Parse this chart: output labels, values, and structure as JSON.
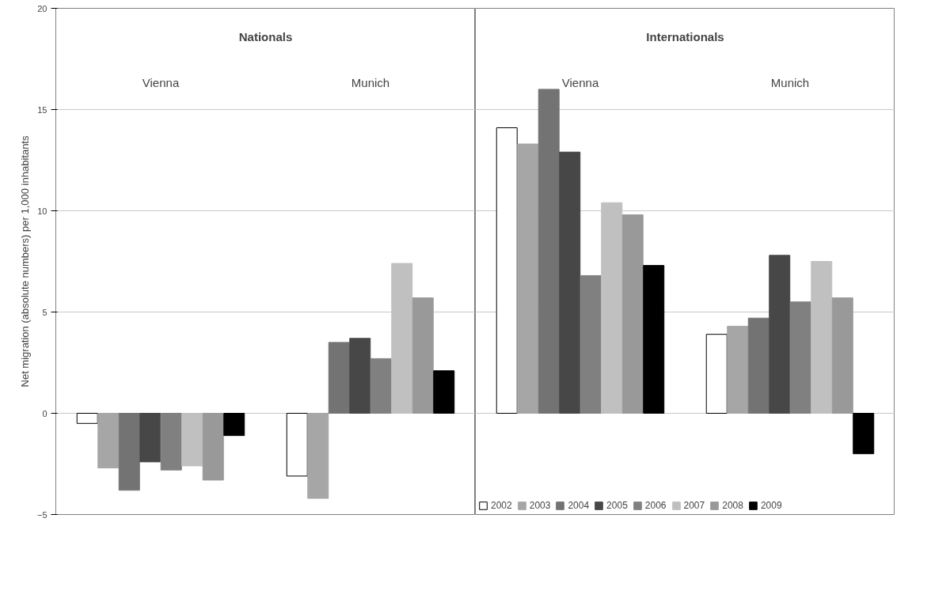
{
  "chart_data": [
    {
      "type": "bar",
      "title": "Nationals",
      "ylabel": "Net migration (absolute numbers) per 1,000 inhabitants",
      "categories": [
        "Vienna",
        "Munich"
      ],
      "ylim": [
        -5,
        20
      ],
      "yticks": [
        -5,
        0,
        5,
        10,
        15,
        20
      ],
      "grid": "y",
      "tick_labels": "y",
      "series": [
        {
          "color": "#ffffff",
          "values": [
            -0.5,
            -3.1
          ]
        },
        {
          "color": "#a6a6a6",
          "values": [
            -2.7,
            -4.2
          ]
        },
        {
          "color": "#737373",
          "values": [
            -3.8,
            3.5
          ]
        },
        {
          "color": "#474747",
          "values": [
            -2.4,
            3.7
          ]
        },
        {
          "color": "#808080",
          "values": [
            -2.8,
            2.7
          ]
        },
        {
          "color": "#c0c0c0",
          "values": [
            -2.6,
            7.4
          ]
        },
        {
          "color": "#999999",
          "values": [
            -3.3,
            5.7
          ]
        },
        {
          "color": "#000000",
          "values": [
            -1.1,
            2.1
          ]
        }
      ]
    },
    {
      "type": "bar",
      "title": "Internationals",
      "categories": [
        "Vienna",
        "Munich"
      ],
      "ylim": [
        -5,
        20
      ],
      "yticks": [
        -5,
        0,
        5,
        10,
        15,
        20
      ],
      "grid": "y",
      "tick_labels": false,
      "legend": "bottom left",
      "series": [
        {
          "name": "2002",
          "color": "#ffffff",
          "values": [
            14.1,
            3.9
          ]
        },
        {
          "name": "2003",
          "color": "#a6a6a6",
          "values": [
            13.3,
            4.3
          ]
        },
        {
          "name": "2004",
          "color": "#737373",
          "values": [
            16,
            4.7
          ]
        },
        {
          "name": "2005",
          "color": "#474747",
          "values": [
            12.9,
            7.8
          ]
        },
        {
          "name": "2006",
          "color": "#808080",
          "values": [
            6.8,
            5.5
          ]
        },
        {
          "name": "2007",
          "color": "#c0c0c0",
          "values": [
            10.4,
            7.5
          ]
        },
        {
          "name": "2008",
          "color": "#999999",
          "values": [
            9.8,
            5.7
          ]
        },
        {
          "name": "2009",
          "color": "#000000",
          "values": [
            7.3,
            -2
          ]
        }
      ]
    }
  ]
}
